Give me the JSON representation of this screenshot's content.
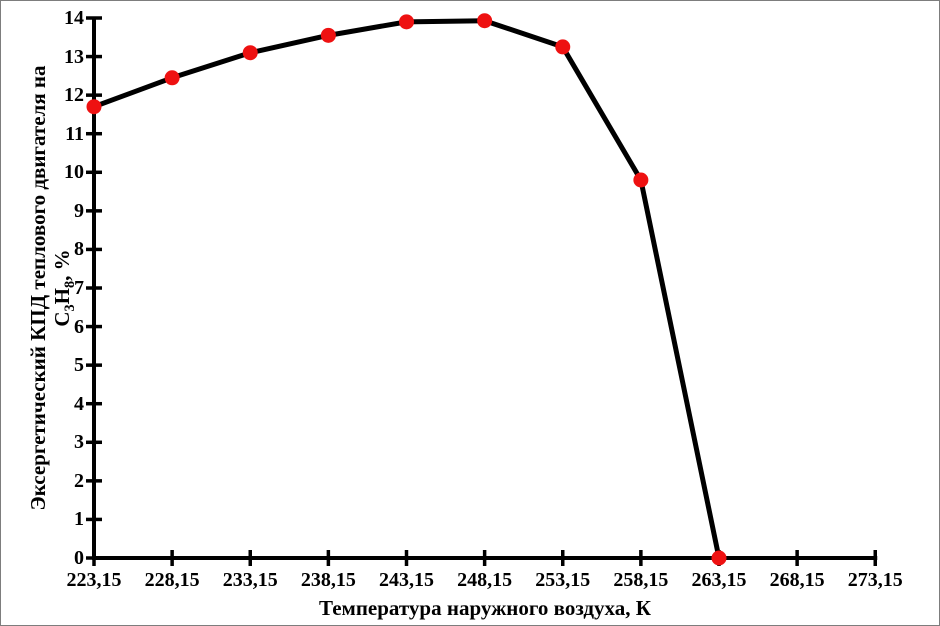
{
  "chart_data": {
    "type": "line",
    "title": "",
    "xlabel": "Температура наружного воздуха, К",
    "ylabel_line1": "Эксергетический КПД теплового двигателя на",
    "ylabel_line2_parts": {
      "pre": "C",
      "sub1": "3",
      "mid": "H",
      "sub2": "8",
      "post": ", %"
    },
    "x": [
      223.15,
      228.15,
      233.15,
      238.15,
      243.15,
      248.15,
      253.15,
      258.15,
      263.15
    ],
    "series": [
      {
        "name": "Эксергетический КПД на C3H8",
        "values": [
          11.7,
          12.45,
          13.1,
          13.55,
          13.9,
          13.93,
          13.25,
          9.8,
          0
        ]
      }
    ],
    "x_ticks": [
      223.15,
      228.15,
      233.15,
      238.15,
      243.15,
      248.15,
      253.15,
      258.15,
      263.15,
      268.15,
      273.15
    ],
    "x_tick_labels": [
      "223,15",
      "228,15",
      "233,15",
      "238,15",
      "243,15",
      "248,15",
      "253,15",
      "258,15",
      "263,15",
      "268,15",
      "273,15"
    ],
    "y_ticks": [
      0,
      1,
      2,
      3,
      4,
      5,
      6,
      7,
      8,
      9,
      10,
      11,
      12,
      13,
      14
    ],
    "y_tick_labels": [
      "0",
      "1",
      "2",
      "3",
      "4",
      "5",
      "6",
      "7",
      "8",
      "9",
      "10",
      "11",
      "12",
      "13",
      "14"
    ],
    "xlim": [
      223.15,
      273.15
    ],
    "ylim": [
      0,
      14
    ],
    "grid": false,
    "legend": "none",
    "line_color": "#000000",
    "point_color": "#ee1111",
    "axis_color": "#000000"
  }
}
